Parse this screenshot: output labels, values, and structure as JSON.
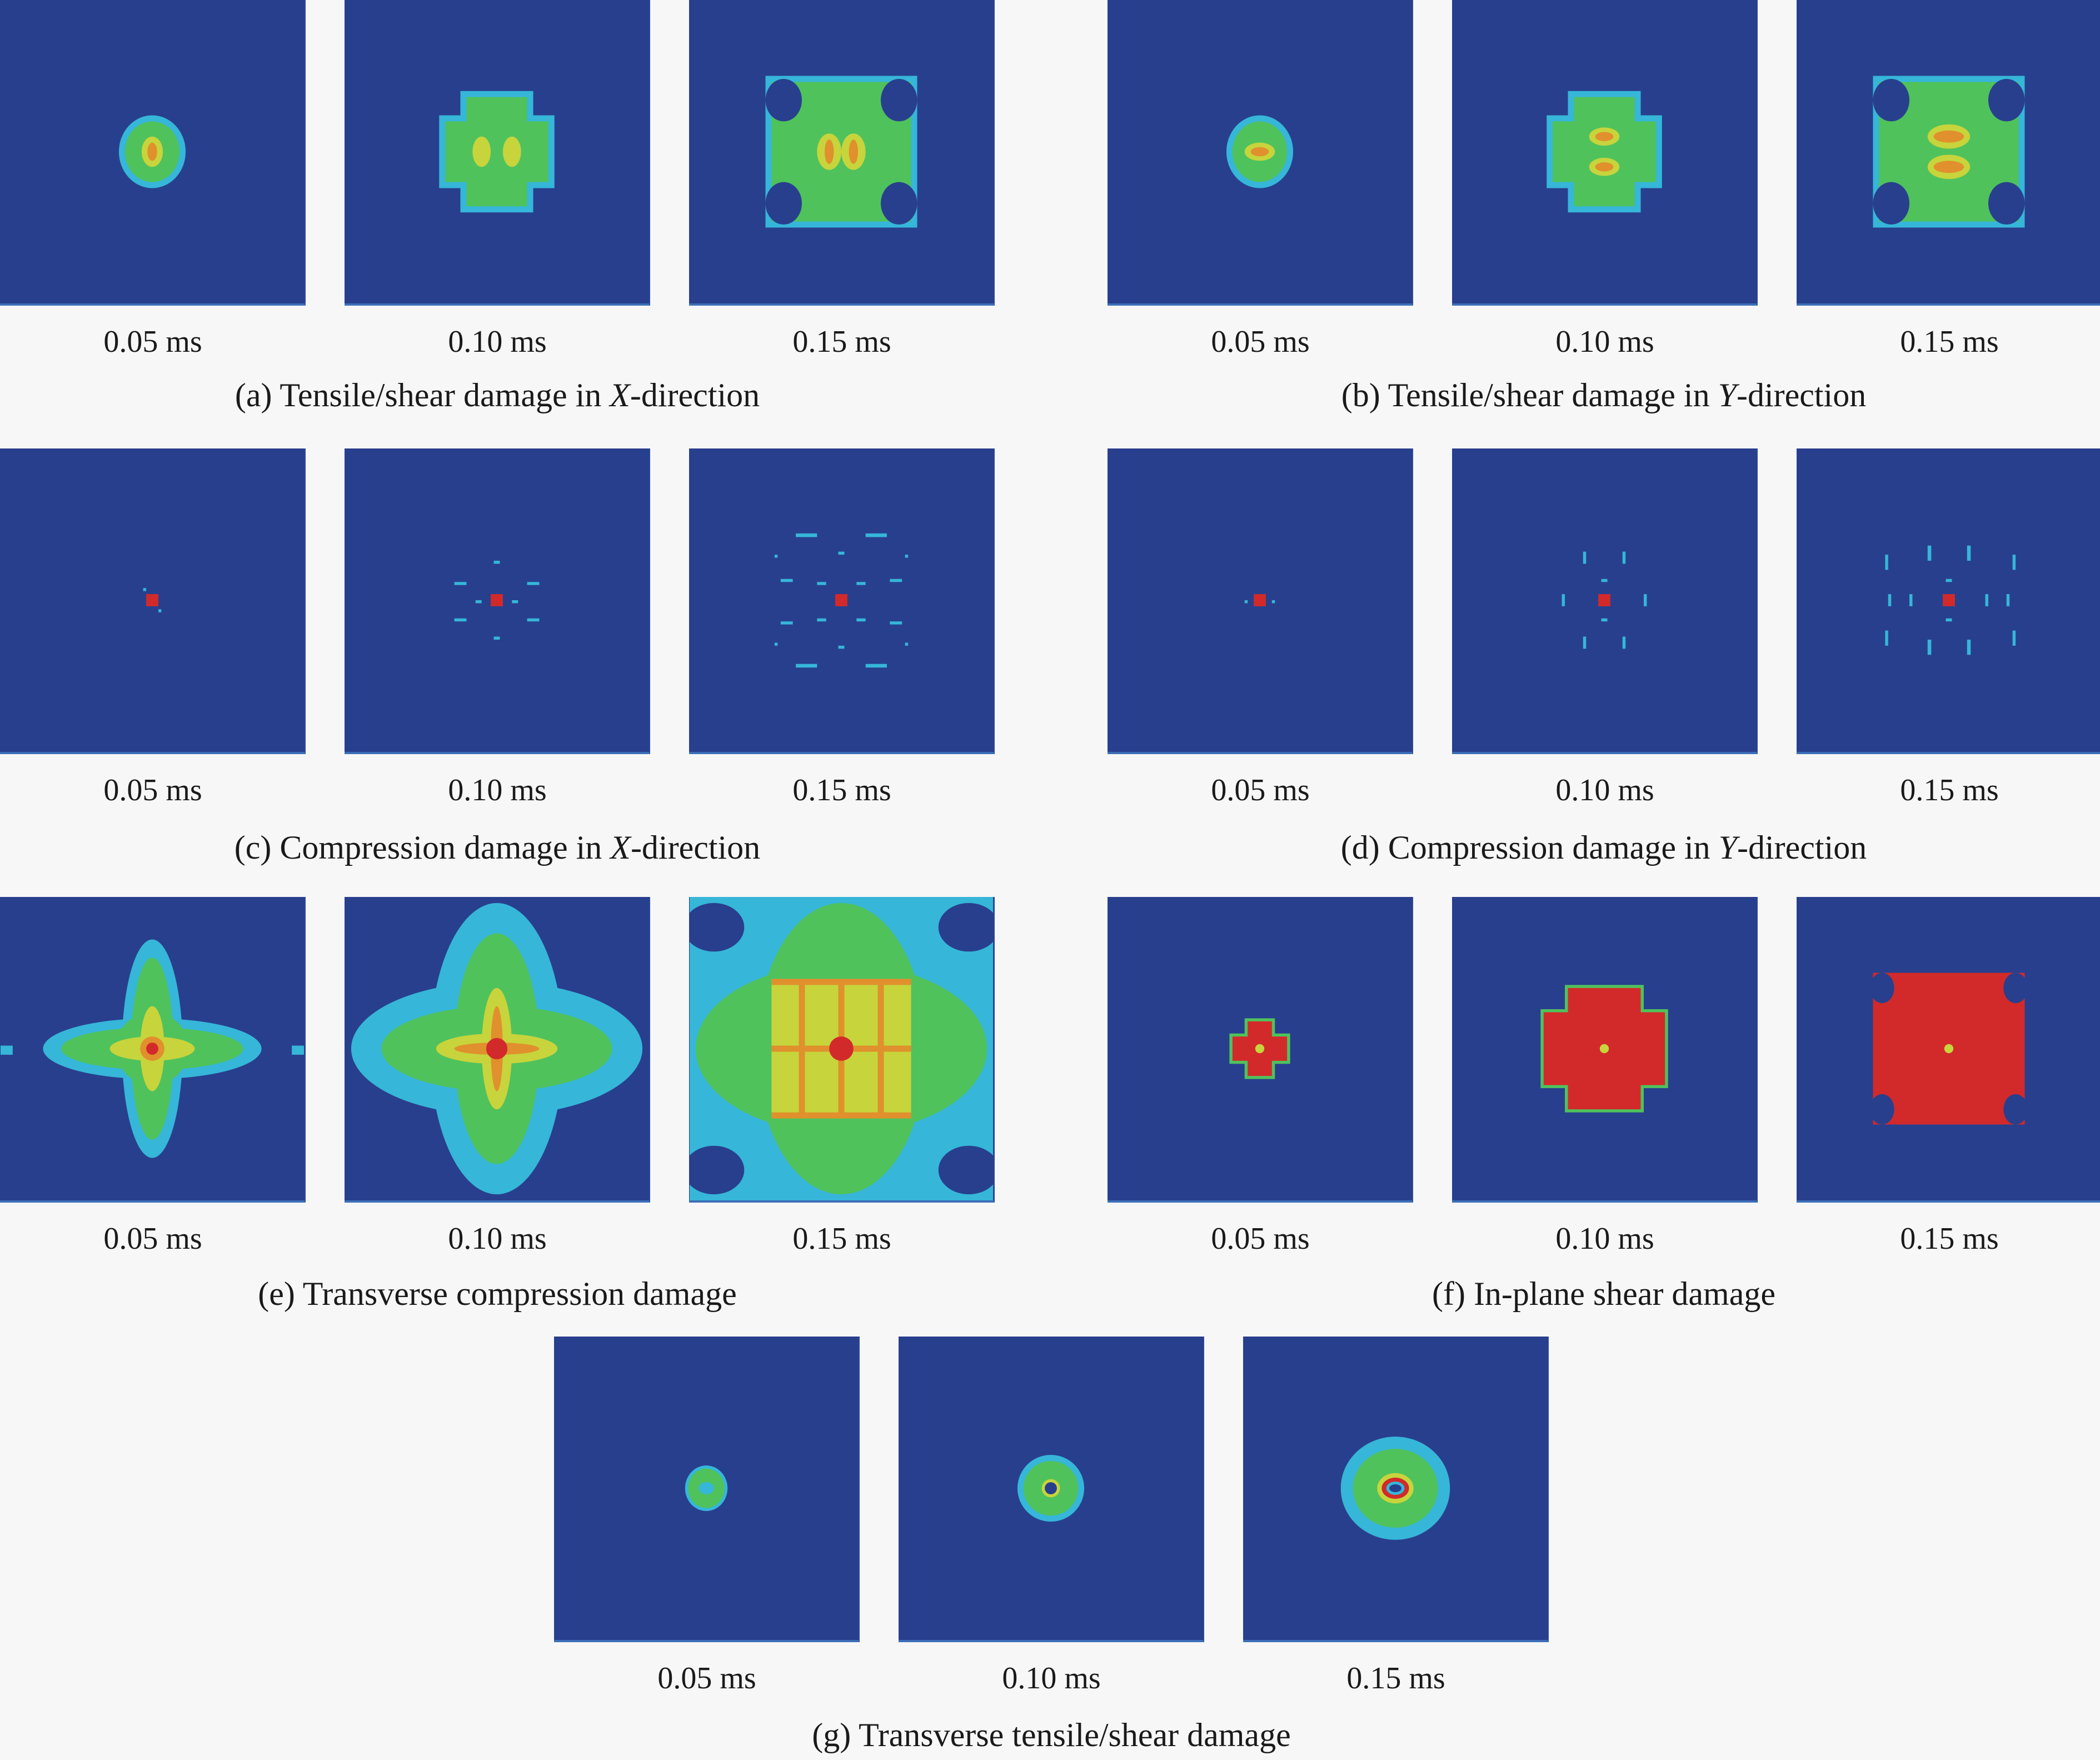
{
  "figure": {
    "groups": [
      {
        "id": "a",
        "caption_prefix": "(a) Tensile/shear damage in ",
        "caption_axis": "X",
        "caption_suffix": "-direction",
        "times": [
          "0.05 ms",
          "0.10 ms",
          "0.15 ms"
        ]
      },
      {
        "id": "b",
        "caption_prefix": "(b) Tensile/shear damage in ",
        "caption_axis": "Y",
        "caption_suffix": "-direction",
        "times": [
          "0.05 ms",
          "0.10 ms",
          "0.15 ms"
        ]
      },
      {
        "id": "c",
        "caption_prefix": "(c) Compression damage in ",
        "caption_axis": "X",
        "caption_suffix": "-direction",
        "times": [
          "0.05 ms",
          "0.10 ms",
          "0.15 ms"
        ]
      },
      {
        "id": "d",
        "caption_prefix": "(d) Compression damage in ",
        "caption_axis": "Y",
        "caption_suffix": "-direction",
        "times": [
          "0.05 ms",
          "0.10 ms",
          "0.15 ms"
        ]
      },
      {
        "id": "e",
        "caption": "(e) Transverse compression damage",
        "times": [
          "0.05 ms",
          "0.10 ms",
          "0.15 ms"
        ]
      },
      {
        "id": "f",
        "caption": "(f) In-plane shear damage",
        "times": [
          "0.05 ms",
          "0.10 ms",
          "0.15 ms"
        ]
      },
      {
        "id": "g",
        "caption": "(g) Transverse tensile/shear damage",
        "times": [
          "0.05 ms",
          "0.10 ms",
          "0.15 ms"
        ]
      }
    ],
    "colors": {
      "background": "#283f8e",
      "cyan": "#36b6d8",
      "green": "#4fc25c",
      "yellow": "#c7d43c",
      "orange": "#e0902c",
      "red": "#d22a2a"
    }
  }
}
